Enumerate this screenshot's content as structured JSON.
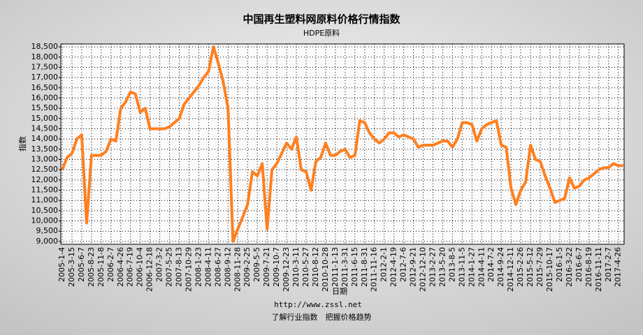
{
  "chart_data": {
    "type": "line",
    "title": "中国再生塑料网原料价格行情指数",
    "subtitle": "HDPE原料",
    "y_label": "指数",
    "x_label": "日期",
    "url": "http://www.zssl.net",
    "slogan": "了解行业指数　把握价格趋势",
    "color": "#ff7f1e",
    "grid": true,
    "categories": [
      "2005-1-4",
      null,
      "2005-3-15",
      null,
      "2005-6-7",
      null,
      "2005-8-23",
      null,
      "2005-11-8",
      null,
      "2006-2-7",
      null,
      "2006-4-26",
      null,
      "2006-7-19",
      null,
      "2006-10-4",
      null,
      "2006-12-18",
      null,
      "2007-3-2",
      null,
      "2007-5-25",
      null,
      "2007-8-13",
      null,
      "2007-10-29",
      null,
      "2008-1-23",
      null,
      "2008-4-11",
      null,
      "2008-6-27",
      null,
      "2008-9-12",
      null,
      "2008-11-28",
      null,
      "2009-2-25",
      null,
      "2009-5-5",
      null,
      "2009-7-21",
      null,
      "2009-10-7",
      null,
      "2009-12-23",
      null,
      "2010-3-11",
      null,
      "2010-5-27",
      null,
      "2010-8-12",
      null,
      "2010-10-28",
      null,
      "2011-1-13",
      null,
      "2011-3-31",
      null,
      "2011-6-15",
      null,
      "2011-8-31",
      null,
      "2011-11-16",
      null,
      "2012-2-1",
      null,
      "2012-4-19",
      null,
      "2012-7-6",
      null,
      "2012-9-21",
      null,
      "2012-12-10",
      null,
      "2013-2-27",
      null,
      "2013-5-20",
      null,
      "2013-8-5",
      null,
      "2013-11-5",
      null,
      "2014-1-27",
      null,
      "2014-4-11",
      null,
      "2014-7-2",
      null,
      "2014-9-24",
      null,
      "2014-12-11",
      null,
      "2015-2-26",
      null,
      "2015-5-12",
      null,
      "2015-7-29",
      null,
      "2015-10-17",
      null,
      "2016-1-5",
      null,
      "2016-3-22",
      null,
      "2016-6-7",
      null,
      "2016-8-19",
      null,
      "2016-11-11",
      null,
      "2017-2-7",
      null,
      "2017-4-26",
      null
    ],
    "values": [
      12500,
      13100,
      13300,
      14000,
      14200,
      9900,
      13200,
      13200,
      13200,
      13400,
      14000,
      13900,
      15500,
      15800,
      16300,
      16200,
      15300,
      15500,
      14500,
      14500,
      14500,
      14500,
      14600,
      14800,
      15000,
      15700,
      16000,
      16300,
      16600,
      17000,
      17300,
      18500,
      17700,
      16800,
      15500,
      9000,
      9600,
      10200,
      10800,
      12400,
      12200,
      12800,
      9600,
      12500,
      12800,
      13300,
      13800,
      13500,
      14100,
      12500,
      12400,
      11500,
      12900,
      13100,
      13800,
      13200,
      13200,
      13400,
      13500,
      13100,
      13200,
      14900,
      14800,
      14300,
      14000,
      13800,
      14000,
      14300,
      14300,
      14100,
      14200,
      14100,
      14000,
      13600,
      13700,
      13700,
      13700,
      13800,
      13900,
      13900,
      13600,
      14000,
      14800,
      14800,
      14700,
      13900,
      14500,
      14700,
      14800,
      14900,
      13700,
      13600,
      11600,
      10800,
      11500,
      11900,
      13700,
      13000,
      12900,
      12200,
      11600,
      10900,
      11000,
      11100,
      12100,
      11600,
      11700,
      12000,
      12100,
      12300,
      12500,
      12600,
      12600,
      12800,
      12700,
      12700
    ],
    "ylim": [
      8860,
      18640
    ],
    "yticks": [
      {
        "value": 9000,
        "label": "9,000"
      },
      {
        "value": 9500,
        "label": "9,500"
      },
      {
        "value": 10000,
        "label": "10,000"
      },
      {
        "value": 10500,
        "label": "10,500"
      },
      {
        "value": 11000,
        "label": "11,000"
      },
      {
        "value": 11500,
        "label": "11,500"
      },
      {
        "value": 12000,
        "label": "12,000"
      },
      {
        "value": 12500,
        "label": "12,500"
      },
      {
        "value": 13000,
        "label": "13,000"
      },
      {
        "value": 13500,
        "label": "13,500"
      },
      {
        "value": 14000,
        "label": "14,000"
      },
      {
        "value": 14500,
        "label": "14,500"
      },
      {
        "value": 15000,
        "label": "15,000"
      },
      {
        "value": 15500,
        "label": "15,500"
      },
      {
        "value": 16000,
        "label": "16,000"
      },
      {
        "value": 16500,
        "label": "16,500"
      },
      {
        "value": 17000,
        "label": "17,000"
      },
      {
        "value": 17500,
        "label": "17,500"
      },
      {
        "value": 18000,
        "label": "18,000"
      },
      {
        "value": 18500,
        "label": "18,500"
      }
    ]
  }
}
